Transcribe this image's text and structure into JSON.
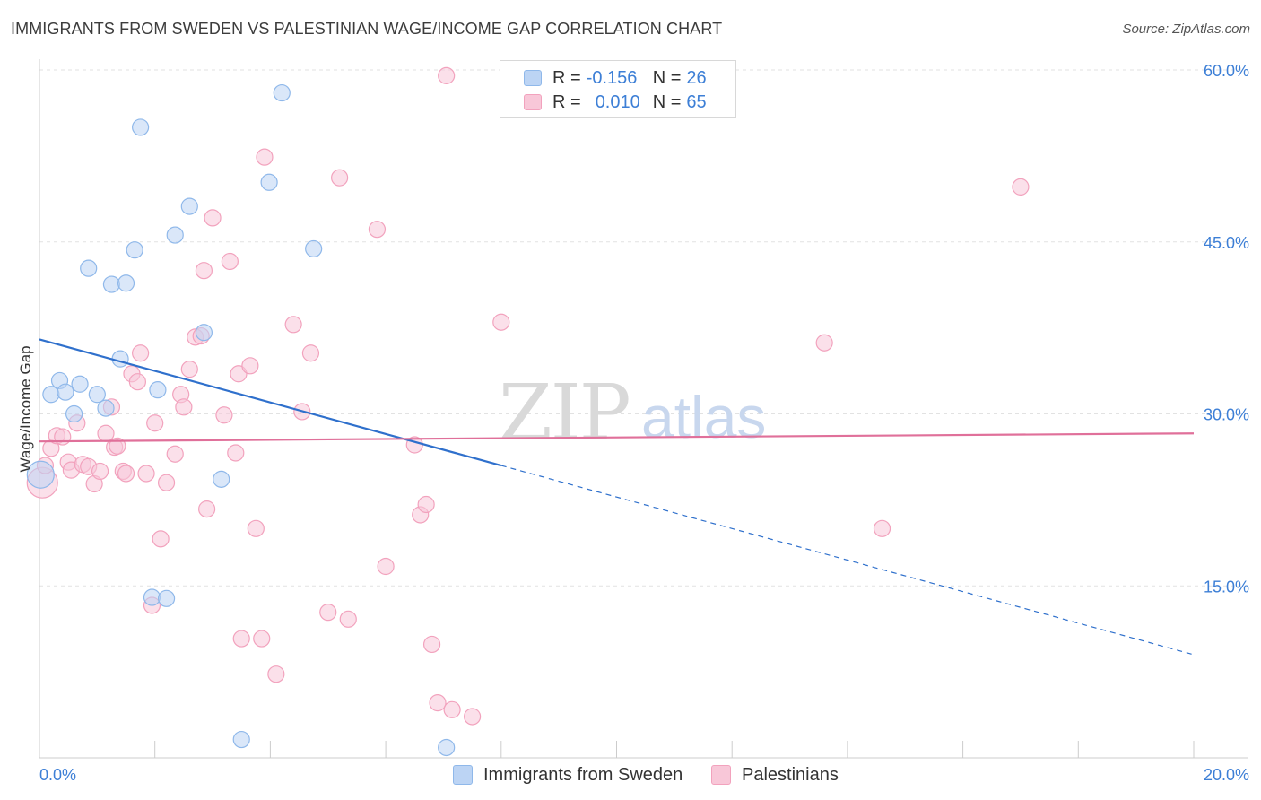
{
  "title": "IMMIGRANTS FROM SWEDEN VS PALESTINIAN WAGE/INCOME GAP CORRELATION CHART",
  "source": "Source: ZipAtlas.com",
  "watermark": {
    "zip": "ZIP",
    "atlas": "atlas"
  },
  "legend_stats": [
    {
      "r_label": "R =",
      "r_value": "-0.156",
      "n_label": "N =",
      "n_value": "26"
    },
    {
      "r_label": "R =",
      "r_value": "0.010",
      "n_label": "N =",
      "n_value": "65"
    }
  ],
  "chart_data": {
    "type": "scatter",
    "title": "IMMIGRANTS FROM SWEDEN VS PALESTINIAN WAGE/INCOME GAP CORRELATION CHART",
    "xlabel": "",
    "ylabel": "Wage/Income Gap",
    "xlim": [
      0,
      20
    ],
    "ylim": [
      0,
      60
    ],
    "x_tick_labels": [
      "0.0%",
      "20.0%"
    ],
    "y_ticks": [
      15,
      30,
      45,
      60
    ],
    "y_tick_labels": [
      "15.0%",
      "30.0%",
      "45.0%",
      "60.0%"
    ],
    "grid": true,
    "legend_position": "bottom",
    "series": [
      {
        "name": "Immigrants from Sweden",
        "color": "#8fb8ea",
        "fill": "#bcd4f4",
        "line_color": "#2f70cc",
        "trend": {
          "x0": 0,
          "y0": 36.5,
          "x_solid_end": 8.0,
          "x1": 20,
          "y1": 9.0
        },
        "points": [
          [
            0.02,
            24.7
          ],
          [
            0.2,
            31.7
          ],
          [
            0.35,
            32.9
          ],
          [
            0.45,
            31.9
          ],
          [
            0.6,
            30.0
          ],
          [
            0.7,
            32.6
          ],
          [
            0.85,
            42.7
          ],
          [
            1.0,
            31.7
          ],
          [
            1.15,
            30.5
          ],
          [
            1.25,
            41.3
          ],
          [
            1.4,
            34.8
          ],
          [
            1.5,
            41.4
          ],
          [
            1.65,
            44.3
          ],
          [
            1.75,
            55.0
          ],
          [
            1.95,
            14.0
          ],
          [
            2.05,
            32.1
          ],
          [
            2.2,
            13.9
          ],
          [
            2.35,
            45.6
          ],
          [
            2.6,
            48.1
          ],
          [
            2.85,
            37.1
          ],
          [
            3.15,
            24.3
          ],
          [
            3.5,
            1.6
          ],
          [
            3.98,
            50.2
          ],
          [
            4.2,
            58.0
          ],
          [
            4.75,
            44.4
          ],
          [
            7.05,
            0.9
          ]
        ]
      },
      {
        "name": "Palestinians",
        "color": "#f2a2bd",
        "fill": "#f8c7d8",
        "line_color": "#e0709a",
        "trend": {
          "x0": 0,
          "y0": 27.6,
          "x1": 20,
          "y1": 28.3
        },
        "points": [
          [
            0.05,
            24.0
          ],
          [
            0.1,
            25.5
          ],
          [
            0.2,
            27.0
          ],
          [
            0.3,
            28.1
          ],
          [
            0.4,
            28.0
          ],
          [
            0.5,
            25.8
          ],
          [
            0.55,
            25.1
          ],
          [
            0.65,
            29.2
          ],
          [
            0.75,
            25.6
          ],
          [
            0.85,
            25.4
          ],
          [
            0.95,
            23.9
          ],
          [
            1.05,
            25.0
          ],
          [
            1.15,
            28.3
          ],
          [
            1.25,
            30.6
          ],
          [
            1.3,
            27.1
          ],
          [
            1.35,
            27.2
          ],
          [
            1.45,
            25.0
          ],
          [
            1.5,
            24.8
          ],
          [
            1.6,
            33.5
          ],
          [
            1.7,
            32.8
          ],
          [
            1.75,
            35.3
          ],
          [
            1.85,
            24.8
          ],
          [
            1.95,
            13.3
          ],
          [
            2.0,
            29.2
          ],
          [
            2.1,
            19.1
          ],
          [
            2.2,
            24.0
          ],
          [
            2.35,
            26.5
          ],
          [
            2.45,
            31.7
          ],
          [
            2.5,
            30.6
          ],
          [
            2.6,
            33.9
          ],
          [
            2.7,
            36.7
          ],
          [
            2.8,
            36.8
          ],
          [
            2.85,
            42.5
          ],
          [
            2.9,
            21.7
          ],
          [
            3.0,
            47.1
          ],
          [
            3.2,
            29.9
          ],
          [
            3.3,
            43.3
          ],
          [
            3.4,
            26.6
          ],
          [
            3.45,
            33.5
          ],
          [
            3.5,
            10.4
          ],
          [
            3.65,
            34.2
          ],
          [
            3.75,
            20.0
          ],
          [
            3.85,
            10.4
          ],
          [
            3.9,
            52.4
          ],
          [
            4.1,
            7.3
          ],
          [
            4.4,
            37.8
          ],
          [
            4.55,
            30.2
          ],
          [
            4.7,
            35.3
          ],
          [
            5.0,
            12.7
          ],
          [
            5.2,
            50.6
          ],
          [
            5.35,
            12.1
          ],
          [
            5.85,
            46.1
          ],
          [
            6.0,
            16.7
          ],
          [
            6.5,
            27.3
          ],
          [
            6.6,
            21.2
          ],
          [
            6.7,
            22.1
          ],
          [
            6.8,
            9.9
          ],
          [
            6.9,
            4.8
          ],
          [
            7.05,
            59.5
          ],
          [
            7.15,
            4.2
          ],
          [
            7.5,
            3.6
          ],
          [
            8.0,
            38.0
          ],
          [
            13.6,
            36.2
          ],
          [
            14.6,
            20.0
          ],
          [
            17.0,
            49.8
          ]
        ]
      }
    ]
  }
}
